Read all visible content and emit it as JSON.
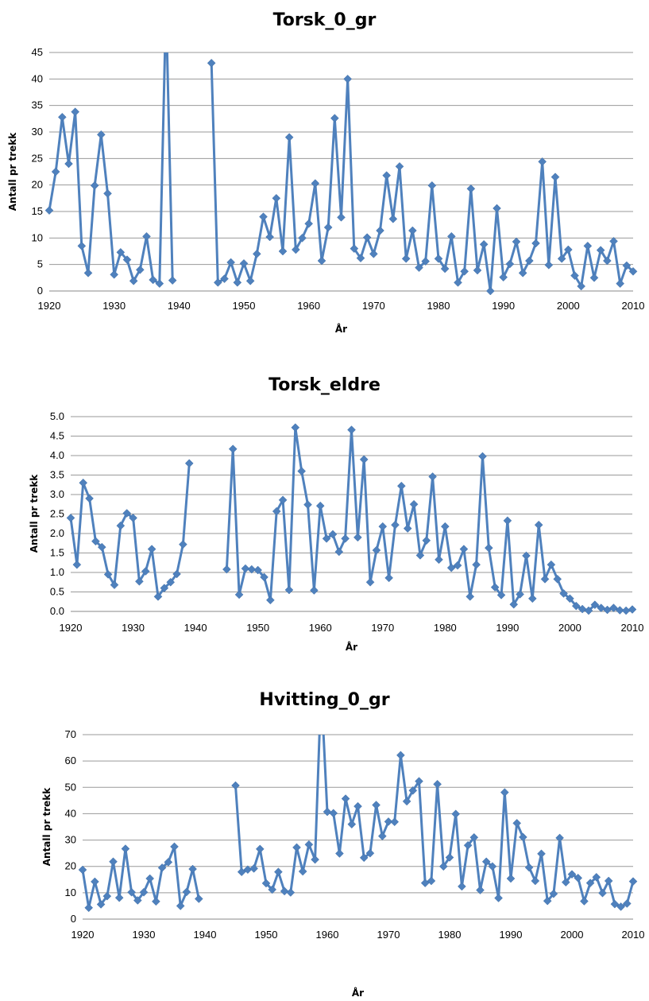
{
  "chart_data": [
    {
      "type": "line",
      "title": "Torsk_0_gr",
      "xlabel": "År",
      "ylabel": "Antall pr trekk",
      "xlim": [
        1920,
        2010
      ],
      "ylim": [
        0,
        45
      ],
      "xticks": [
        "1920",
        "1930",
        "1940",
        "1950",
        "1960",
        "1970",
        "1980",
        "1990",
        "2000",
        "2010"
      ],
      "yticks": [
        "0",
        "5",
        "10",
        "15",
        "20",
        "25",
        "30",
        "35",
        "40",
        "45"
      ],
      "grid": true,
      "color": "#4F81BD",
      "series": [
        {
          "x": [
            1920,
            1921,
            1922,
            1923,
            1924,
            1925,
            1926,
            1927,
            1928,
            1929,
            1930,
            1931,
            1932,
            1933,
            1934,
            1935,
            1936,
            1937,
            1938,
            1939,
            1945,
            1946,
            1947,
            1948,
            1949,
            1950,
            1951,
            1952,
            1953,
            1954,
            1955,
            1956,
            1957,
            1958,
            1959,
            1960,
            1961,
            1962,
            1963,
            1964,
            1965,
            1966,
            1967,
            1968,
            1969,
            1970,
            1971,
            1972,
            1973,
            1974,
            1975,
            1976,
            1977,
            1978,
            1979,
            1980,
            1981,
            1982,
            1983,
            1984,
            1985,
            1986,
            1987,
            1988,
            1989,
            1990,
            1991,
            1992,
            1993,
            1994,
            1995,
            1996,
            1997,
            1998,
            1999,
            2000,
            2001,
            2002,
            2003,
            2004,
            2005,
            2006,
            2007,
            2008,
            2009,
            2010
          ],
          "values": [
            15.2,
            22.5,
            32.8,
            24.0,
            33.8,
            8.5,
            3.4,
            19.9,
            29.5,
            18.4,
            3.1,
            7.3,
            5.9,
            1.9,
            4.0,
            10.3,
            2.1,
            1.4,
            null,
            2.0,
            43.0,
            1.6,
            2.3,
            5.4,
            1.6,
            5.2,
            1.9,
            7.0,
            14.0,
            10.2,
            17.5,
            7.5,
            29.0,
            7.8,
            10.0,
            12.7,
            20.3,
            5.7,
            12.0,
            32.6,
            13.9,
            40.0,
            8.0,
            6.2,
            10.1,
            7.0,
            11.4,
            21.8,
            13.6,
            23.5,
            6.1,
            11.4,
            4.4,
            5.6,
            19.9,
            6.1,
            4.2,
            10.3,
            1.6,
            3.7,
            19.3,
            3.9,
            8.8,
            0.0,
            15.6,
            2.6,
            5.1,
            9.3,
            3.4,
            5.7,
            9.0,
            24.4,
            4.9,
            21.5,
            6.1,
            7.8,
            2.9,
            0.9,
            8.5,
            2.5,
            7.7,
            5.7,
            9.4,
            1.4,
            4.8,
            3.7
          ]
        }
      ]
    },
    {
      "type": "line",
      "title": "Torsk_eldre",
      "xlabel": "År",
      "ylabel": "Antall pr trekk",
      "xlim": [
        1920,
        2010
      ],
      "ylim": [
        0,
        5
      ],
      "xticks": [
        "1920",
        "1930",
        "1940",
        "1950",
        "1960",
        "1970",
        "1980",
        "1990",
        "2000",
        "2010"
      ],
      "yticks": [
        "0.0",
        "0.5",
        "1.0",
        "1.5",
        "2.0",
        "2.5",
        "3.0",
        "3.5",
        "4.0",
        "4.5",
        "5.0"
      ],
      "grid": true,
      "color": "#4F81BD",
      "series": [
        {
          "x": [
            1920,
            1921,
            1922,
            1923,
            1924,
            1925,
            1926,
            1927,
            1928,
            1929,
            1930,
            1931,
            1932,
            1933,
            1934,
            1935,
            1936,
            1937,
            1938,
            1939,
            1945,
            1946,
            1947,
            1948,
            1949,
            1950,
            1951,
            1952,
            1953,
            1954,
            1955,
            1956,
            1957,
            1958,
            1959,
            1960,
            1961,
            1962,
            1963,
            1964,
            1965,
            1966,
            1967,
            1968,
            1969,
            1970,
            1971,
            1972,
            1973,
            1974,
            1975,
            1976,
            1977,
            1978,
            1979,
            1980,
            1981,
            1982,
            1983,
            1984,
            1985,
            1986,
            1987,
            1988,
            1989,
            1990,
            1991,
            1992,
            1993,
            1994,
            1995,
            1996,
            1997,
            1998,
            1999,
            2000,
            2001,
            2002,
            2003,
            2004,
            2005,
            2006,
            2007,
            2008,
            2009,
            2010
          ],
          "values": [
            2.4,
            1.2,
            3.3,
            2.9,
            1.8,
            1.65,
            0.95,
            0.68,
            2.2,
            2.52,
            2.4,
            0.77,
            1.03,
            1.6,
            0.38,
            0.6,
            0.75,
            0.96,
            1.72,
            3.8,
            1.08,
            4.17,
            0.43,
            1.1,
            1.08,
            1.06,
            0.88,
            0.29,
            2.57,
            2.86,
            0.55,
            4.72,
            3.6,
            2.74,
            0.54,
            2.71,
            1.87,
            1.98,
            1.53,
            1.87,
            4.66,
            1.9,
            3.9,
            0.75,
            1.57,
            2.18,
            0.86,
            2.22,
            3.22,
            2.13,
            2.75,
            1.44,
            1.82,
            3.46,
            1.33,
            2.18,
            1.12,
            1.18,
            1.6,
            0.38,
            1.2,
            3.98,
            1.63,
            0.62,
            0.42,
            2.33,
            0.18,
            0.44,
            1.43,
            0.33,
            2.22,
            0.83,
            1.2,
            0.83,
            0.46,
            0.33,
            0.14,
            0.06,
            0.02,
            0.17,
            0.09,
            0.04,
            0.09,
            0.03,
            0.02,
            0.05
          ]
        }
      ]
    },
    {
      "type": "line",
      "title": "Hvitting_0_gr",
      "xlabel": "År",
      "ylabel": "Antall pr trekk",
      "xlim": [
        1920,
        2010
      ],
      "ylim": [
        0,
        70
      ],
      "xticks": [
        "1920",
        "1930",
        "1940",
        "1950",
        "1960",
        "1970",
        "1980",
        "1990",
        "2000",
        "2010"
      ],
      "yticks": [
        "0",
        "10",
        "20",
        "30",
        "40",
        "50",
        "60",
        "70"
      ],
      "grid": true,
      "color": "#4F81BD",
      "series": [
        {
          "x": [
            1920,
            1921,
            1922,
            1923,
            1924,
            1925,
            1926,
            1927,
            1928,
            1929,
            1930,
            1931,
            1932,
            1933,
            1934,
            1935,
            1936,
            1937,
            1938,
            1939,
            1945,
            1946,
            1947,
            1948,
            1949,
            1950,
            1951,
            1952,
            1953,
            1954,
            1955,
            1956,
            1957,
            1958,
            1959,
            1960,
            1961,
            1962,
            1963,
            1964,
            1965,
            1966,
            1967,
            1968,
            1969,
            1970,
            1971,
            1972,
            1973,
            1974,
            1975,
            1976,
            1977,
            1978,
            1979,
            1980,
            1981,
            1982,
            1983,
            1984,
            1985,
            1986,
            1987,
            1988,
            1989,
            1990,
            1991,
            1992,
            1993,
            1994,
            1995,
            1996,
            1997,
            1998,
            1999,
            2000,
            2001,
            2002,
            2003,
            2004,
            2005,
            2006,
            2007,
            2008,
            2009,
            2010
          ],
          "values": [
            18.7,
            4.3,
            14.2,
            5.6,
            8.7,
            21.8,
            8.1,
            26.7,
            10.2,
            7.1,
            10.2,
            15.4,
            6.7,
            19.5,
            21.6,
            27.5,
            5.0,
            10.3,
            19.0,
            7.7,
            50.7,
            17.9,
            18.8,
            19.2,
            26.6,
            13.6,
            11.2,
            17.9,
            10.6,
            10.1,
            27.2,
            18.1,
            28.3,
            22.6,
            null,
            40.7,
            40.2,
            24.9,
            45.7,
            36.0,
            42.8,
            23.3,
            25.0,
            43.3,
            31.5,
            37.0,
            36.9,
            62.2,
            44.7,
            48.8,
            52.3,
            13.7,
            14.5,
            51.2,
            20.0,
            23.4,
            39.9,
            12.4,
            28.0,
            31.0,
            11.0,
            21.8,
            20.0,
            8.0,
            48.1,
            15.4,
            36.4,
            31.1,
            19.6,
            14.5,
            24.8,
            6.9,
            9.6,
            30.8,
            14.0,
            17.0,
            15.6,
            6.8,
            13.7,
            15.9,
            9.9,
            14.5,
            5.7,
            4.7,
            5.9,
            14.3
          ]
        }
      ]
    }
  ]
}
